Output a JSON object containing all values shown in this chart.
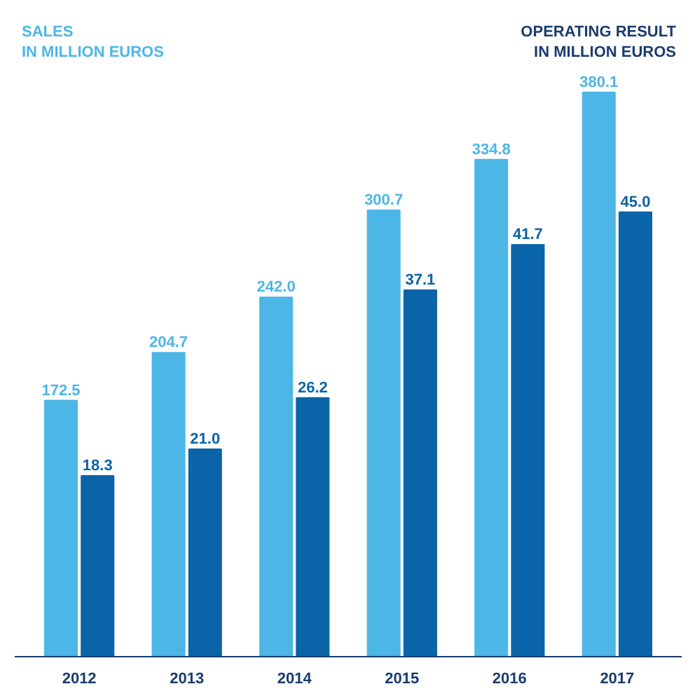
{
  "chart_data": {
    "type": "bar",
    "ylabel": "SALES\nIN MILLION EUROS",
    "y2label": "OPERATING RESULT\nIN MILLION EUROS",
    "categories": [
      "2012",
      "2013",
      "2014",
      "2015",
      "2016",
      "2017"
    ],
    "series": [
      {
        "color": "#4cb6e6",
        "values": [
          172.5,
          204.7,
          242.0,
          300.7,
          334.8,
          380.1
        ],
        "value_labels": [
          "172.5",
          "204.7",
          "242.0",
          "300.7",
          "334.8",
          "380.1"
        ]
      },
      {
        "color": "#0a64a8",
        "values": [
          18.3,
          21.0,
          26.2,
          37.1,
          41.7,
          45.0
        ],
        "value_labels": [
          "18.3",
          "21.0",
          "26.2",
          "37.1",
          "41.7",
          "45.0"
        ],
        "axis": "y2"
      }
    ]
  }
}
